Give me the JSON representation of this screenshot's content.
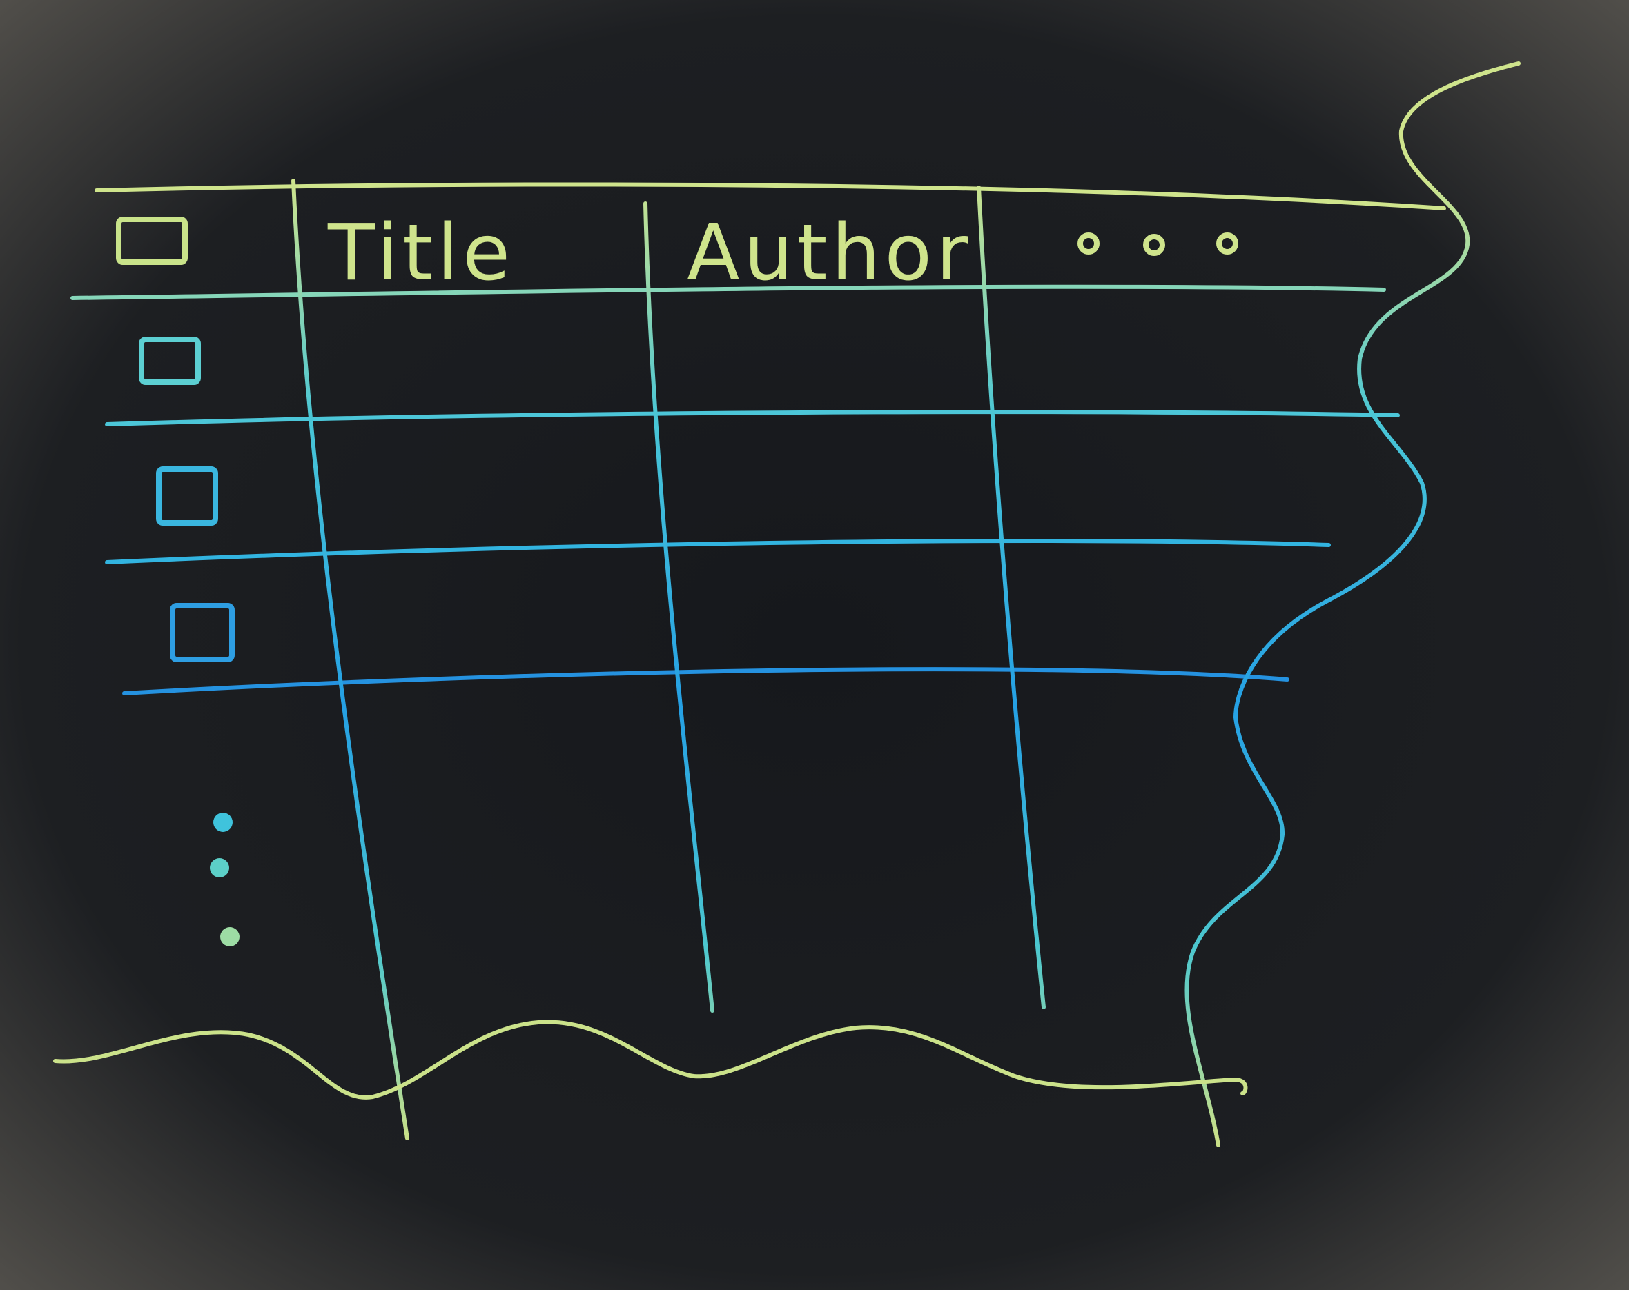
{
  "board": {
    "background": "#1a1c20",
    "header_color": "#c9e38a",
    "body_color": "#3fb8dc",
    "deep_color": "#2a8fe0",
    "edge_color": "#c6df86"
  },
  "table": {
    "columns": [
      {
        "label": "Title"
      },
      {
        "label": "Author"
      },
      {
        "label": "..."
      }
    ],
    "select_all": {
      "checked": false,
      "icon": "checkbox-icon"
    },
    "rows": [
      {
        "checked": false
      },
      {
        "checked": false
      },
      {
        "checked": false
      }
    ],
    "more_rows_icon": "vertical-ellipsis-icon",
    "cut_edges_icon": "wavy-edge-icon"
  }
}
